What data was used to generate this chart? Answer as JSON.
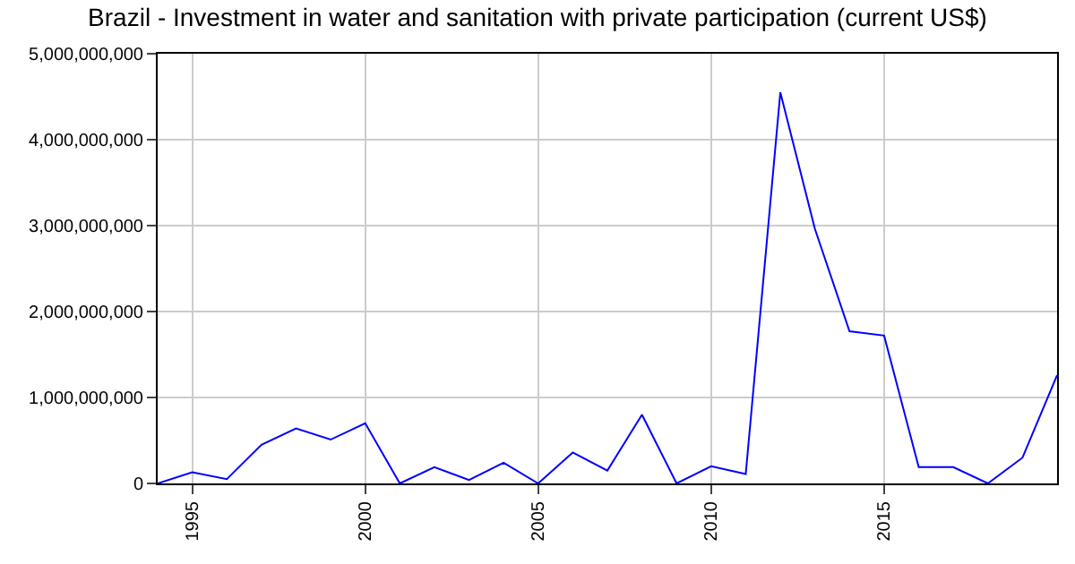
{
  "chart_data": {
    "type": "line",
    "title": "Brazil - Investment in water and sanitation with private participation (current US$)",
    "x": [
      1994,
      1995,
      1996,
      1997,
      1998,
      1999,
      2000,
      2001,
      2002,
      2003,
      2004,
      2005,
      2006,
      2007,
      2008,
      2009,
      2010,
      2011,
      2012,
      2013,
      2014,
      2015,
      2016,
      2017,
      2018,
      2019,
      2020
    ],
    "series": [
      {
        "color": "#0000ff",
        "values": [
          0,
          130000000,
          50000000,
          450000000,
          640000000,
          510000000,
          700000000,
          0,
          190000000,
          40000000,
          240000000,
          0,
          360000000,
          150000000,
          800000000,
          0,
          200000000,
          110000000,
          4550000000,
          2960000000,
          1770000000,
          1720000000,
          190000000,
          190000000,
          0,
          300000000,
          1260000000
        ]
      }
    ],
    "xlim": [
      1994,
      2020
    ],
    "xticks": [
      1995,
      2000,
      2005,
      2010,
      2015
    ],
    "ylim": [
      0,
      5000000000
    ],
    "yticks": [
      {
        "value": 0,
        "label": "0"
      },
      {
        "value": 1000000000,
        "label": "1,000,000,000"
      },
      {
        "value": 2000000000,
        "label": "2,000,000,000"
      },
      {
        "value": 3000000000,
        "label": "3,000,000,000"
      },
      {
        "value": 4000000000,
        "label": "4,000,000,000"
      },
      {
        "value": 5000000000,
        "label": "5,000,000,000"
      }
    ],
    "grid": true,
    "marker": "none",
    "line_style": "solid"
  }
}
